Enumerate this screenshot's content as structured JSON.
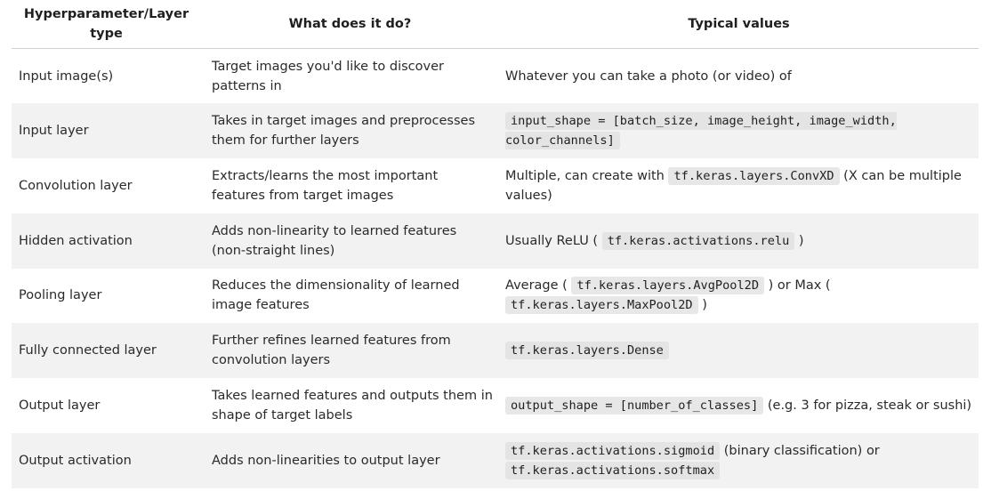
{
  "headers": {
    "col1": "Hyperparameter/Layer type",
    "col2": "What does it do?",
    "col3": "Typical values"
  },
  "rows": [
    {
      "name": "Input image(s)",
      "desc": "Target images you'd like to discover patterns in",
      "typical": {
        "t1": "Whatever you can take a photo (or video) of"
      }
    },
    {
      "name": "Input layer",
      "desc": "Takes in target images and preprocesses them for further layers",
      "typical": {
        "code1": "input_shape = [batch_size, image_height, image_width, color_channels]"
      }
    },
    {
      "name": "Convolution layer",
      "desc": "Extracts/learns the most important features from target images",
      "typical": {
        "t1": "Multiple, can create with ",
        "code1": "tf.keras.layers.ConvXD",
        "t2": " (X can be multiple values)"
      }
    },
    {
      "name": "Hidden activation",
      "desc": "Adds non-linearity to learned features (non-straight lines)",
      "typical": {
        "t1": "Usually ReLU ( ",
        "code1": "tf.keras.activations.relu",
        "t2": " )"
      }
    },
    {
      "name": "Pooling layer",
      "desc": "Reduces the dimensionality of learned image features",
      "typical": {
        "t1": "Average ( ",
        "code1": "tf.keras.layers.AvgPool2D",
        "t2": " ) or Max ( ",
        "code2": "tf.keras.layers.MaxPool2D",
        "t3": " )"
      }
    },
    {
      "name": "Fully connected layer",
      "desc": "Further refines learned features from convolution layers",
      "typical": {
        "code1": "tf.keras.layers.Dense"
      }
    },
    {
      "name": "Output layer",
      "desc": "Takes learned features and outputs them in shape of target labels",
      "typical": {
        "code1": "output_shape = [number_of_classes]",
        "t1": " (e.g. 3 for pizza, steak or sushi)"
      }
    },
    {
      "name": "Output activation",
      "desc": "Adds non-linearities to output layer",
      "typical": {
        "code1": "tf.keras.activations.sigmoid",
        "t1": " (binary classification) or ",
        "code2": "tf.keras.activations.softmax"
      }
    }
  ]
}
